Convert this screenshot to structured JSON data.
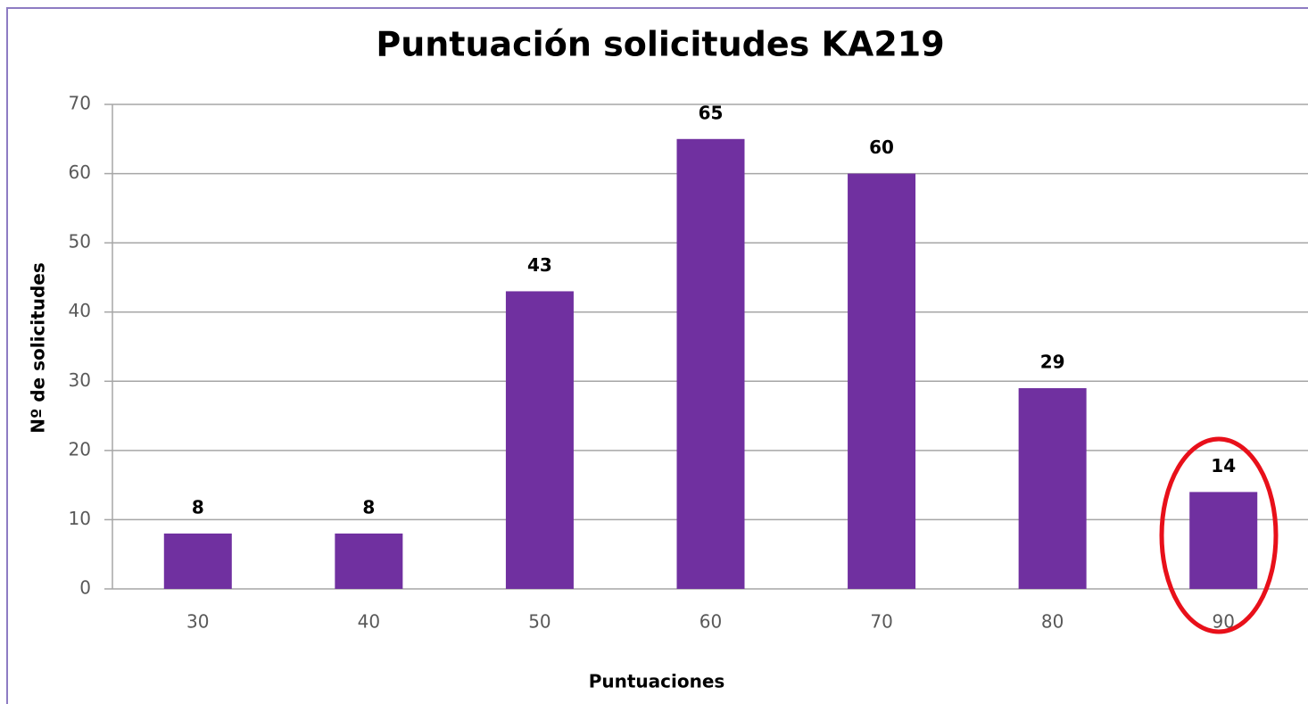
{
  "chart_data": {
    "type": "bar",
    "title": "Puntuación solicitudes KA219",
    "x_label": "Puntuaciones",
    "y_label": "Nº de solicitudes",
    "categories": [
      "30",
      "40",
      "50",
      "60",
      "70",
      "80",
      "90"
    ],
    "values": [
      8,
      8,
      43,
      65,
      60,
      29,
      14
    ],
    "color": "#7030a0",
    "ylim": [
      0,
      70
    ],
    "yticks": [
      0,
      10,
      20,
      30,
      40,
      50,
      60,
      70
    ],
    "grid": true
  }
}
